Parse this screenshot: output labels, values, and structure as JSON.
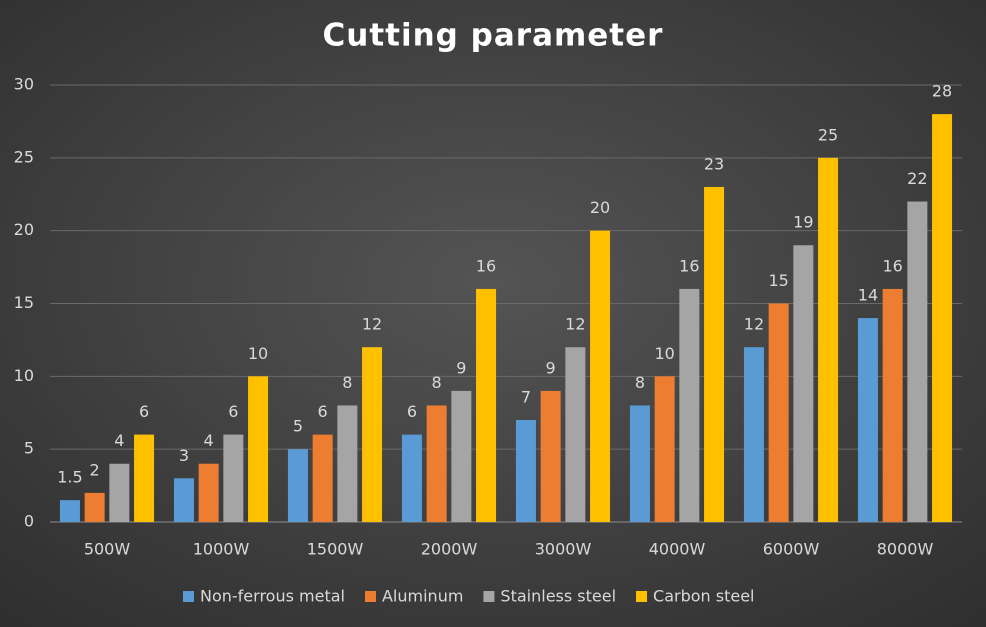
{
  "chart_data": {
    "type": "bar",
    "title": "Cutting parameter",
    "categories": [
      "500W",
      "1000W",
      "1500W",
      "2000W",
      "3000W",
      "4000W",
      "6000W",
      "8000W"
    ],
    "series": [
      {
        "name": "Non-ferrous metal",
        "color": "#5b9bd5",
        "values": [
          1.5,
          3,
          5,
          6,
          7,
          8,
          12,
          14
        ]
      },
      {
        "name": "Aluminum",
        "color": "#ed7d31",
        "values": [
          2,
          4,
          6,
          8,
          9,
          10,
          15,
          16
        ]
      },
      {
        "name": "Stainless steel",
        "color": "#a5a5a5",
        "values": [
          4,
          6,
          8,
          9,
          12,
          16,
          19,
          22
        ]
      },
      {
        "name": "Carbon steel",
        "color": "#ffc000",
        "values": [
          6,
          10,
          12,
          16,
          20,
          23,
          25,
          28
        ]
      }
    ],
    "ylim": [
      0,
      30
    ],
    "yticks": [
      0,
      5,
      10,
      15,
      20,
      25,
      30
    ],
    "grid": true,
    "legend": "bottom"
  }
}
